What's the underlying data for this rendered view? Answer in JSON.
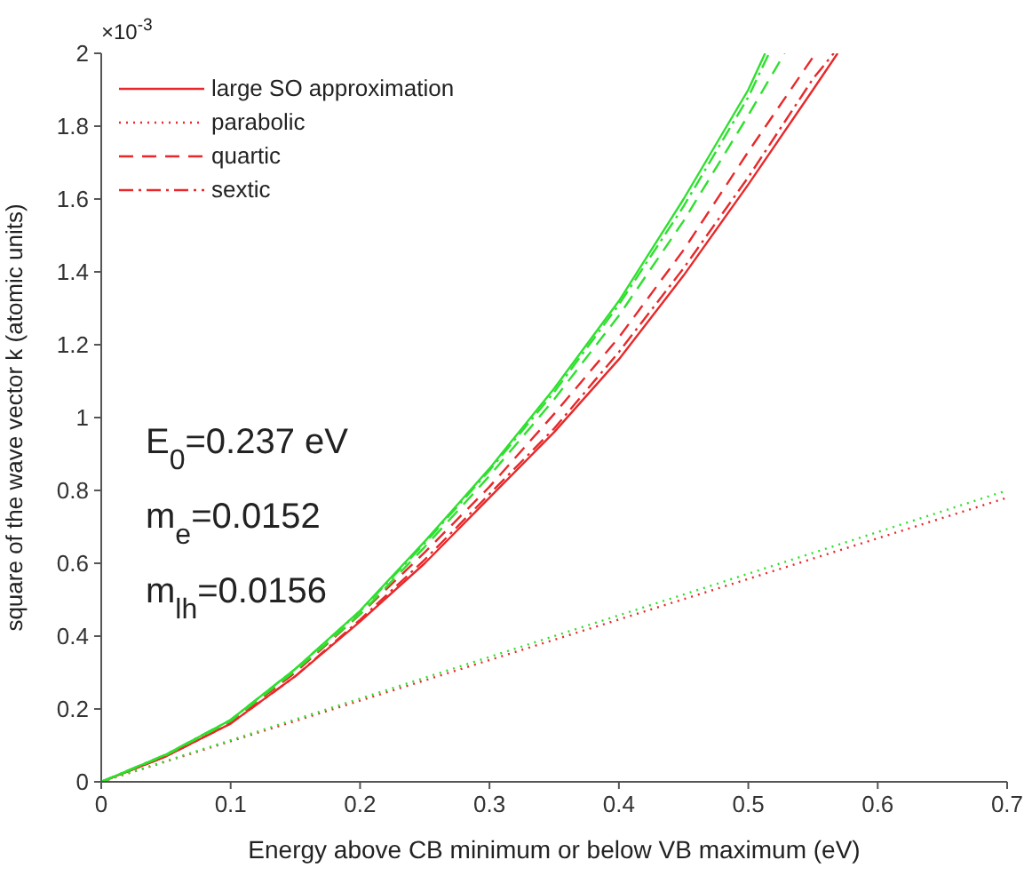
{
  "chart_data": {
    "type": "line",
    "xlabel": "Energy above CB minimum or below VB maximum (eV)",
    "ylabel": "square of the wave vector k (atomic units)",
    "xlim": [
      0,
      0.7
    ],
    "xticks": [
      0,
      0.1,
      0.2,
      0.3,
      0.4,
      0.5,
      0.6,
      {
        "value": 0.7,
        "label": "0.7"
      }
    ],
    "ylim": [
      0,
      2
    ],
    "yticks": [
      0,
      0.2,
      0.4,
      0.6,
      0.8,
      1,
      1.2,
      1.4,
      1.6,
      1.8,
      2
    ],
    "grid": false,
    "legend": "top left",
    "marker": "none",
    "annotations": [
      "×10$^{-3}$",
      "E$_{0}$=0.237 eV",
      "m$_{e}$=0.0152",
      "m$_{lh}$=0.0156"
    ],
    "series": [
      {
        "name": "large SO approximation",
        "color": "#e8282a",
        "line_style": "solid",
        "x": [
          0,
          0.05,
          0.1,
          0.15,
          0.2,
          0.25,
          0.3,
          0.35,
          0.4,
          0.45,
          0.5,
          0.55,
          0.569
        ],
        "values": [
          0,
          0.07,
          0.16,
          0.29,
          0.44,
          0.6,
          0.78,
          0.96,
          1.16,
          1.39,
          1.64,
          1.9,
          2
        ]
      },
      {
        "name": "parabolic",
        "color": "#e8282a",
        "line_style": "dotted",
        "x": [
          0,
          0.7
        ],
        "values": [
          0,
          0.78
        ]
      },
      {
        "name": "quartic",
        "color": "#e8282a",
        "line_style": "dashed",
        "x": [
          0,
          0.05,
          0.1,
          0.15,
          0.2,
          0.25,
          0.3,
          0.35,
          0.4,
          0.45,
          0.5,
          0.552
        ],
        "values": [
          0,
          0.07,
          0.165,
          0.3,
          0.46,
          0.63,
          0.81,
          1.01,
          1.22,
          1.46,
          1.73,
          2
        ]
      },
      {
        "name": "sextic",
        "color": "#e8282a",
        "line_style": "dashdot",
        "x": [
          0,
          0.05,
          0.1,
          0.15,
          0.2,
          0.25,
          0.3,
          0.35,
          0.4,
          0.45,
          0.5,
          0.55,
          0.566
        ],
        "values": [
          0,
          0.07,
          0.16,
          0.29,
          0.445,
          0.61,
          0.79,
          0.97,
          1.18,
          1.41,
          1.66,
          1.93,
          2
        ]
      },
      {
        "color": "#2ee02e",
        "line_style": "solid",
        "x": [
          0,
          0.05,
          0.1,
          0.15,
          0.2,
          0.25,
          0.3,
          0.35,
          0.4,
          0.45,
          0.5,
          0.513
        ],
        "values": [
          0,
          0.075,
          0.17,
          0.31,
          0.47,
          0.66,
          0.86,
          1.08,
          1.32,
          1.6,
          1.9,
          2
        ]
      },
      {
        "color": "#2ee02e",
        "line_style": "dotted",
        "x": [
          0,
          0.7
        ],
        "values": [
          0,
          0.8
        ]
      },
      {
        "color": "#2ee02e",
        "line_style": "dashed",
        "x": [
          0,
          0.05,
          0.1,
          0.15,
          0.2,
          0.25,
          0.3,
          0.35,
          0.4,
          0.45,
          0.5,
          0.528
        ],
        "values": [
          0,
          0.073,
          0.167,
          0.305,
          0.46,
          0.645,
          0.84,
          1.05,
          1.28,
          1.54,
          1.83,
          2
        ]
      },
      {
        "color": "#2ee02e",
        "line_style": "dashdot",
        "x": [
          0,
          0.05,
          0.1,
          0.15,
          0.2,
          0.25,
          0.3,
          0.35,
          0.4,
          0.45,
          0.5,
          0.516
        ],
        "values": [
          0,
          0.075,
          0.17,
          0.31,
          0.468,
          0.655,
          0.855,
          1.07,
          1.31,
          1.58,
          1.88,
          2
        ]
      }
    ]
  }
}
